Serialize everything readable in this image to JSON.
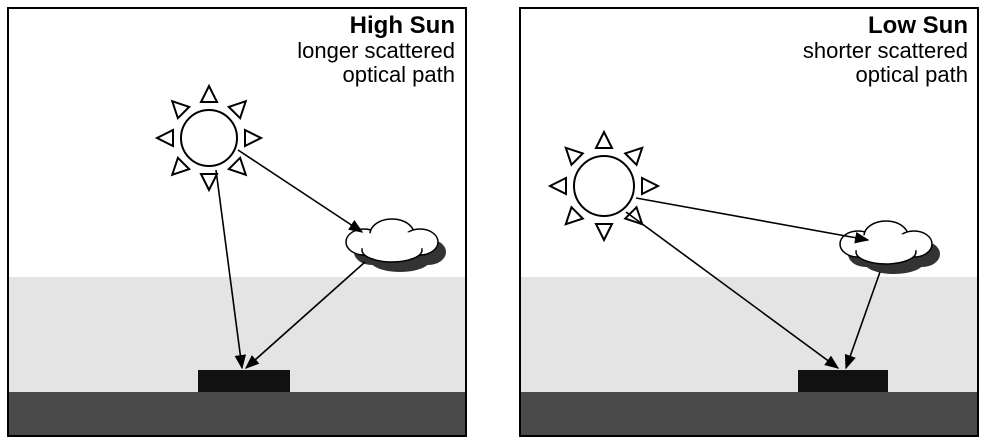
{
  "panels": [
    {
      "title": "High Sun",
      "caption": [
        "longer scattered",
        "optical path"
      ]
    },
    {
      "title": "Low Sun",
      "caption": [
        "shorter scattered",
        "optical path"
      ]
    }
  ]
}
